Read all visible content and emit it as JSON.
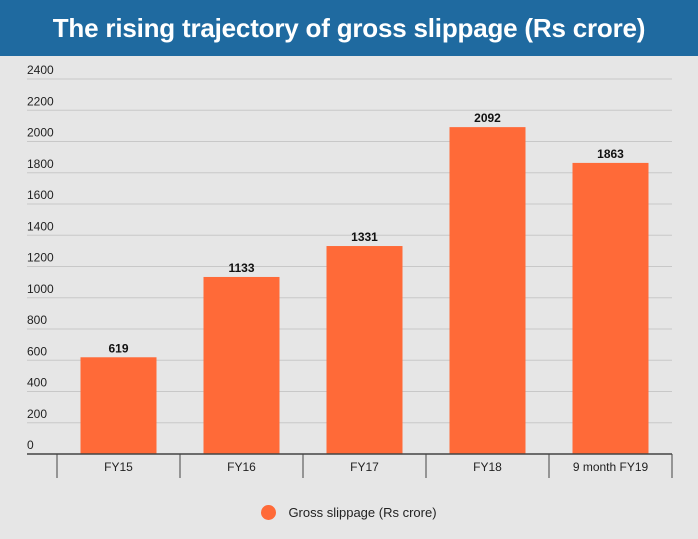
{
  "header": {
    "title": "The rising trajectory of gross slippage (Rs crore)"
  },
  "colors": {
    "header_bg": "#1f6aa0",
    "bar": "#ff6a38",
    "grid": "#c8c8c8",
    "axis": "#444444"
  },
  "chart_data": {
    "type": "bar",
    "title": "The rising trajectory of gross slippage (Rs crore)",
    "categories": [
      "FY15",
      "FY16",
      "FY17",
      "FY18",
      "9 month FY19"
    ],
    "series": [
      {
        "name": "Gross slippage (Rs crore)",
        "values": [
          619,
          1133,
          1331,
          2092,
          1863
        ]
      }
    ],
    "ylim": [
      0,
      2400
    ],
    "yticks": [
      0,
      200,
      400,
      600,
      800,
      1000,
      1200,
      1400,
      1600,
      1800,
      2000,
      2200,
      2400
    ],
    "xlabel": "",
    "ylabel": "",
    "grid": true,
    "legend_position": "bottom-center"
  }
}
